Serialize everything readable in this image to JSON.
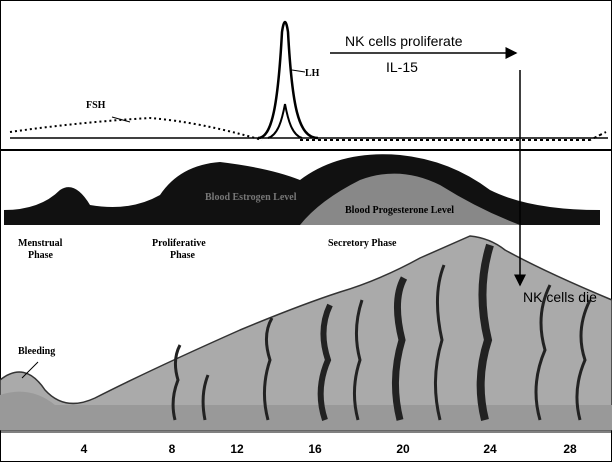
{
  "annotations": {
    "nk_proliferate": "NK cells proliferate",
    "il15": "IL-15",
    "nk_die": "NK cells die"
  },
  "hormones": {
    "lh": "LH",
    "fsh": "FSH",
    "estrogen": "Blood Estrogen Level",
    "progesterone": "Blood Progesterone Level"
  },
  "phases": [
    [
      "Menstrual",
      "Phase"
    ],
    [
      "Proliferative",
      "Phase"
    ],
    [
      "Secretory Phase"
    ]
  ],
  "bleeding": "Bleeding",
  "days": [
    "4",
    "8",
    "12",
    "16",
    "20",
    "24",
    "28"
  ]
}
